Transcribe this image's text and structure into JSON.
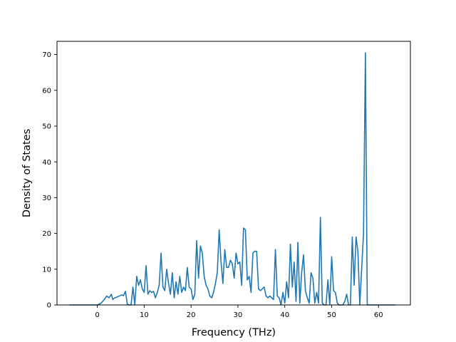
{
  "chart_data": {
    "type": "line",
    "title": "",
    "xlabel": "Frequency (THz)",
    "ylabel": "Density of States",
    "xlim": [
      -8.6,
      66.8
    ],
    "ylim": [
      0,
      73.7
    ],
    "xticks": [
      0,
      10,
      20,
      30,
      40,
      50,
      60
    ],
    "yticks": [
      0,
      10,
      20,
      30,
      40,
      50,
      60,
      70
    ],
    "grid": false,
    "legend": "none",
    "series": [
      {
        "color": "#1f77b4",
        "x": [
          -5.9,
          -4.0,
          -2.0,
          0.0,
          0.8,
          1.5,
          2.0,
          2.5,
          3.0,
          3.3,
          3.7,
          4.2,
          4.7,
          5.2,
          5.6,
          6.0,
          6.4,
          6.8,
          7.2,
          7.6,
          8.0,
          8.4,
          8.8,
          9.2,
          9.6,
          10.0,
          10.4,
          10.8,
          11.2,
          11.6,
          12.0,
          12.4,
          12.8,
          13.2,
          13.6,
          14.0,
          14.4,
          14.8,
          15.2,
          15.6,
          16.0,
          16.4,
          16.8,
          17.2,
          17.6,
          18.0,
          18.4,
          18.8,
          19.2,
          19.6,
          20.0,
          20.4,
          20.8,
          21.2,
          21.6,
          22.0,
          22.4,
          22.8,
          23.2,
          23.6,
          24.0,
          24.4,
          24.8,
          25.2,
          25.6,
          26.0,
          26.4,
          26.8,
          27.2,
          27.6,
          28.0,
          28.4,
          28.8,
          29.2,
          29.6,
          30.0,
          30.4,
          30.8,
          31.2,
          31.6,
          32.0,
          32.4,
          32.8,
          33.2,
          33.6,
          34.0,
          34.4,
          34.8,
          35.2,
          35.6,
          36.0,
          36.4,
          36.8,
          37.2,
          37.6,
          38.0,
          38.4,
          38.8,
          39.2,
          39.6,
          40.0,
          40.4,
          40.8,
          41.2,
          41.6,
          42.0,
          42.4,
          42.8,
          43.2,
          43.6,
          44.0,
          44.4,
          44.8,
          45.2,
          45.6,
          46.0,
          46.4,
          46.8,
          47.2,
          47.6,
          48.0,
          48.4,
          48.8,
          49.2,
          49.6,
          50.0,
          50.4,
          50.8,
          51.2,
          51.6,
          52.0,
          52.4,
          52.8,
          53.2,
          53.6,
          54.0,
          54.4,
          54.8,
          55.2,
          55.6,
          56.0,
          56.4,
          56.8,
          57.2,
          57.6,
          58.0,
          58.4,
          59.0,
          61.0,
          63.5
        ],
        "y": [
          0.0,
          0.0,
          0.0,
          0.0,
          0.5,
          1.5,
          2.5,
          2.0,
          3.0,
          1.5,
          2.0,
          2.2,
          2.5,
          2.8,
          2.6,
          3.8,
          0.2,
          0.0,
          0.0,
          5.0,
          0.0,
          8.0,
          5.5,
          7.0,
          4.5,
          3.5,
          11.0,
          3.0,
          4.0,
          3.5,
          3.8,
          2.0,
          3.5,
          5.5,
          14.5,
          5.0,
          4.0,
          10.0,
          6.0,
          3.0,
          9.0,
          2.0,
          6.5,
          3.0,
          8.0,
          3.5,
          5.0,
          4.0,
          10.5,
          5.0,
          4.5,
          1.5,
          3.0,
          18.0,
          7.5,
          16.5,
          14.5,
          8.0,
          5.5,
          4.5,
          2.5,
          2.0,
          3.5,
          6.0,
          9.0,
          21.0,
          12.0,
          6.0,
          15.5,
          10.5,
          10.5,
          12.5,
          11.5,
          7.5,
          14.5,
          11.5,
          12.0,
          5.5,
          21.5,
          21.0,
          7.0,
          8.0,
          3.5,
          14.5,
          15.0,
          15.0,
          4.5,
          4.0,
          4.5,
          5.0,
          2.5,
          2.0,
          2.5,
          2.0,
          1.5,
          15.5,
          2.5,
          2.0,
          0.0,
          3.5,
          0.5,
          6.5,
          2.0,
          17.0,
          5.0,
          12.0,
          1.0,
          17.5,
          0.5,
          9.0,
          14.0,
          4.0,
          2.0,
          0.5,
          9.0,
          7.5,
          0.5,
          3.5,
          0.5,
          24.5,
          0.5,
          0.0,
          0.0,
          7.0,
          0.0,
          13.5,
          4.0,
          3.5,
          0.5,
          0.0,
          0.0,
          0.0,
          1.0,
          3.0,
          0.0,
          0.0,
          19.0,
          5.5,
          19.0,
          15.0,
          0.0,
          10.0,
          20.0,
          70.5,
          0.0,
          0.0,
          0.0,
          0.0,
          0.0,
          0.0
        ]
      }
    ]
  }
}
